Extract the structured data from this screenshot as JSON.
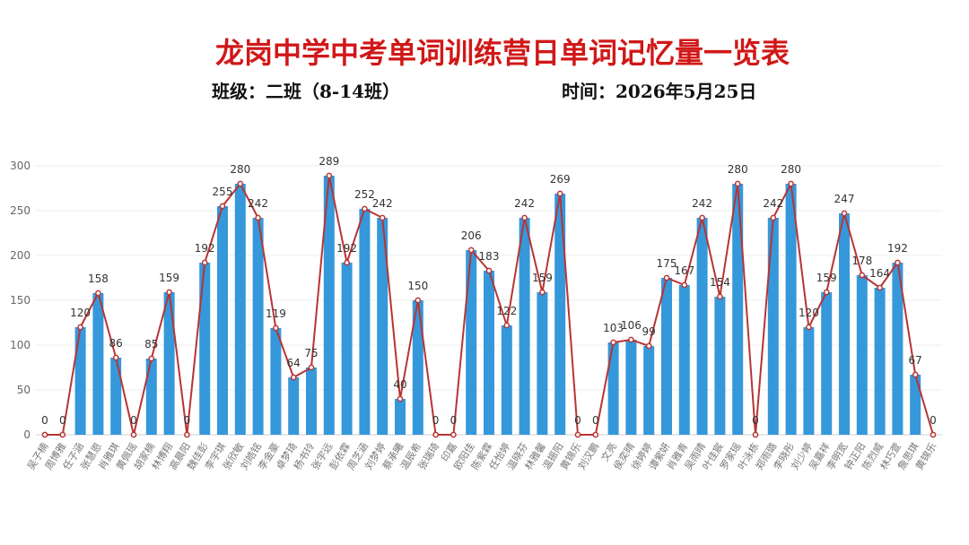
{
  "header": {
    "title": "龙岗中学中考单词训练营日单词记忆量一览表",
    "class_label": "班级：二班（8-14班）",
    "time_label": "时间：2026年5月25日"
  },
  "colors": {
    "bar": "#3498db",
    "line": "#b83434",
    "title": "#d01818",
    "grid": "#ececec"
  },
  "chart_data": {
    "type": "bar",
    "title": "龙岗中学中考单词训练营日单词记忆量一览表",
    "xlabel": "",
    "ylabel": "",
    "ylim": [
      0,
      300
    ],
    "yticks": [
      0,
      50,
      100,
      150,
      200,
      250,
      300
    ],
    "grid": true,
    "legend": "none",
    "categories": [
      "吴子楠",
      "周博雅",
      "任子涵",
      "张慧恩",
      "肖雅琪",
      "黄佩瑶",
      "胡家楠",
      "林博翔",
      "高晨阳",
      "魏佳彭",
      "李宇琪",
      "张欣敏",
      "刘皓铭",
      "李金豪",
      "卓梦琦",
      "杨书玲",
      "张宇远",
      "彭依霖",
      "周芝涵",
      "刘梦婷",
      "蔡承曦",
      "温辰希",
      "张瑞琦",
      "印嘉",
      "欧阳佳",
      "陈紫霖",
      "任怡婷",
      "温晓芬",
      "林雅馨",
      "温振阳",
      "黄锦乐",
      "刘汉鹏",
      "文亮",
      "侯奕晴",
      "徐婷婷",
      "谭紫妍",
      "肖雅青",
      "吴雨晴",
      "叶佳宸",
      "罗家瑶",
      "叶泳栋",
      "郑雨璐",
      "李晓彤",
      "刘少婷",
      "吴嘉祥",
      "李明宽",
      "钟正阳",
      "陈烈威",
      "林巧萱",
      "詹思琪",
      "黄锦乐"
    ],
    "series": [
      {
        "type": "bar",
        "values": [
          0,
          0,
          120,
          158,
          86,
          0,
          85,
          159,
          0,
          192,
          255,
          280,
          242,
          119,
          64,
          75,
          289,
          192,
          252,
          242,
          40,
          150,
          0,
          0,
          206,
          183,
          122,
          242,
          159,
          269,
          0,
          0,
          103,
          106,
          99,
          175,
          167,
          242,
          154,
          280,
          0,
          242,
          280,
          120,
          159,
          247,
          178,
          164,
          192,
          67,
          0
        ]
      },
      {
        "type": "line",
        "values": [
          0,
          0,
          120,
          158,
          86,
          0,
          85,
          159,
          0,
          192,
          255,
          280,
          242,
          119,
          64,
          75,
          289,
          192,
          252,
          242,
          40,
          150,
          0,
          0,
          206,
          183,
          122,
          242,
          159,
          269,
          0,
          0,
          103,
          106,
          99,
          175,
          167,
          242,
          154,
          280,
          0,
          242,
          280,
          120,
          159,
          247,
          178,
          164,
          192,
          67,
          0
        ]
      }
    ]
  }
}
